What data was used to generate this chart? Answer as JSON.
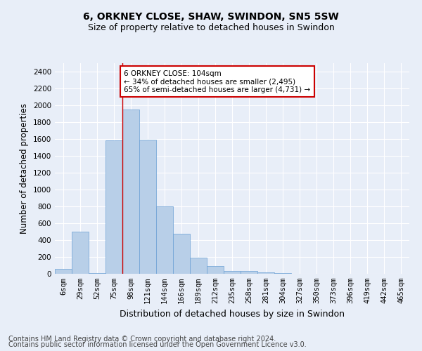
{
  "title": "6, ORKNEY CLOSE, SHAW, SWINDON, SN5 5SW",
  "subtitle": "Size of property relative to detached houses in Swindon",
  "xlabel": "Distribution of detached houses by size in Swindon",
  "ylabel": "Number of detached properties",
  "categories": [
    "6sqm",
    "29sqm",
    "52sqm",
    "75sqm",
    "98sqm",
    "121sqm",
    "144sqm",
    "166sqm",
    "189sqm",
    "212sqm",
    "235sqm",
    "258sqm",
    "281sqm",
    "304sqm",
    "327sqm",
    "350sqm",
    "373sqm",
    "396sqm",
    "419sqm",
    "442sqm",
    "465sqm"
  ],
  "bar_heights": [
    60,
    500,
    5,
    1580,
    1950,
    1590,
    800,
    475,
    195,
    90,
    35,
    30,
    20,
    5,
    0,
    0,
    0,
    0,
    0,
    0,
    0
  ],
  "bar_color": "#b8cfe8",
  "bar_edge_color": "#6a9fd4",
  "annotation_box_text": "6 ORKNEY CLOSE: 104sqm\n← 34% of detached houses are smaller (2,495)\n65% of semi-detached houses are larger (4,731) →",
  "annotation_box_color": "#ffffff",
  "annotation_box_edge_color": "#cc0000",
  "vline_color": "#cc0000",
  "vline_x_index": 4,
  "ylim": [
    0,
    2500
  ],
  "yticks": [
    0,
    200,
    400,
    600,
    800,
    1000,
    1200,
    1400,
    1600,
    1800,
    2000,
    2200,
    2400
  ],
  "background_color": "#e8eef8",
  "plot_background_color": "#e8eef8",
  "grid_color": "#ffffff",
  "footer_line1": "Contains HM Land Registry data © Crown copyright and database right 2024.",
  "footer_line2": "Contains public sector information licensed under the Open Government Licence v3.0.",
  "title_fontsize": 10,
  "subtitle_fontsize": 9,
  "xlabel_fontsize": 9,
  "ylabel_fontsize": 8.5,
  "tick_fontsize": 7.5,
  "footer_fontsize": 7
}
